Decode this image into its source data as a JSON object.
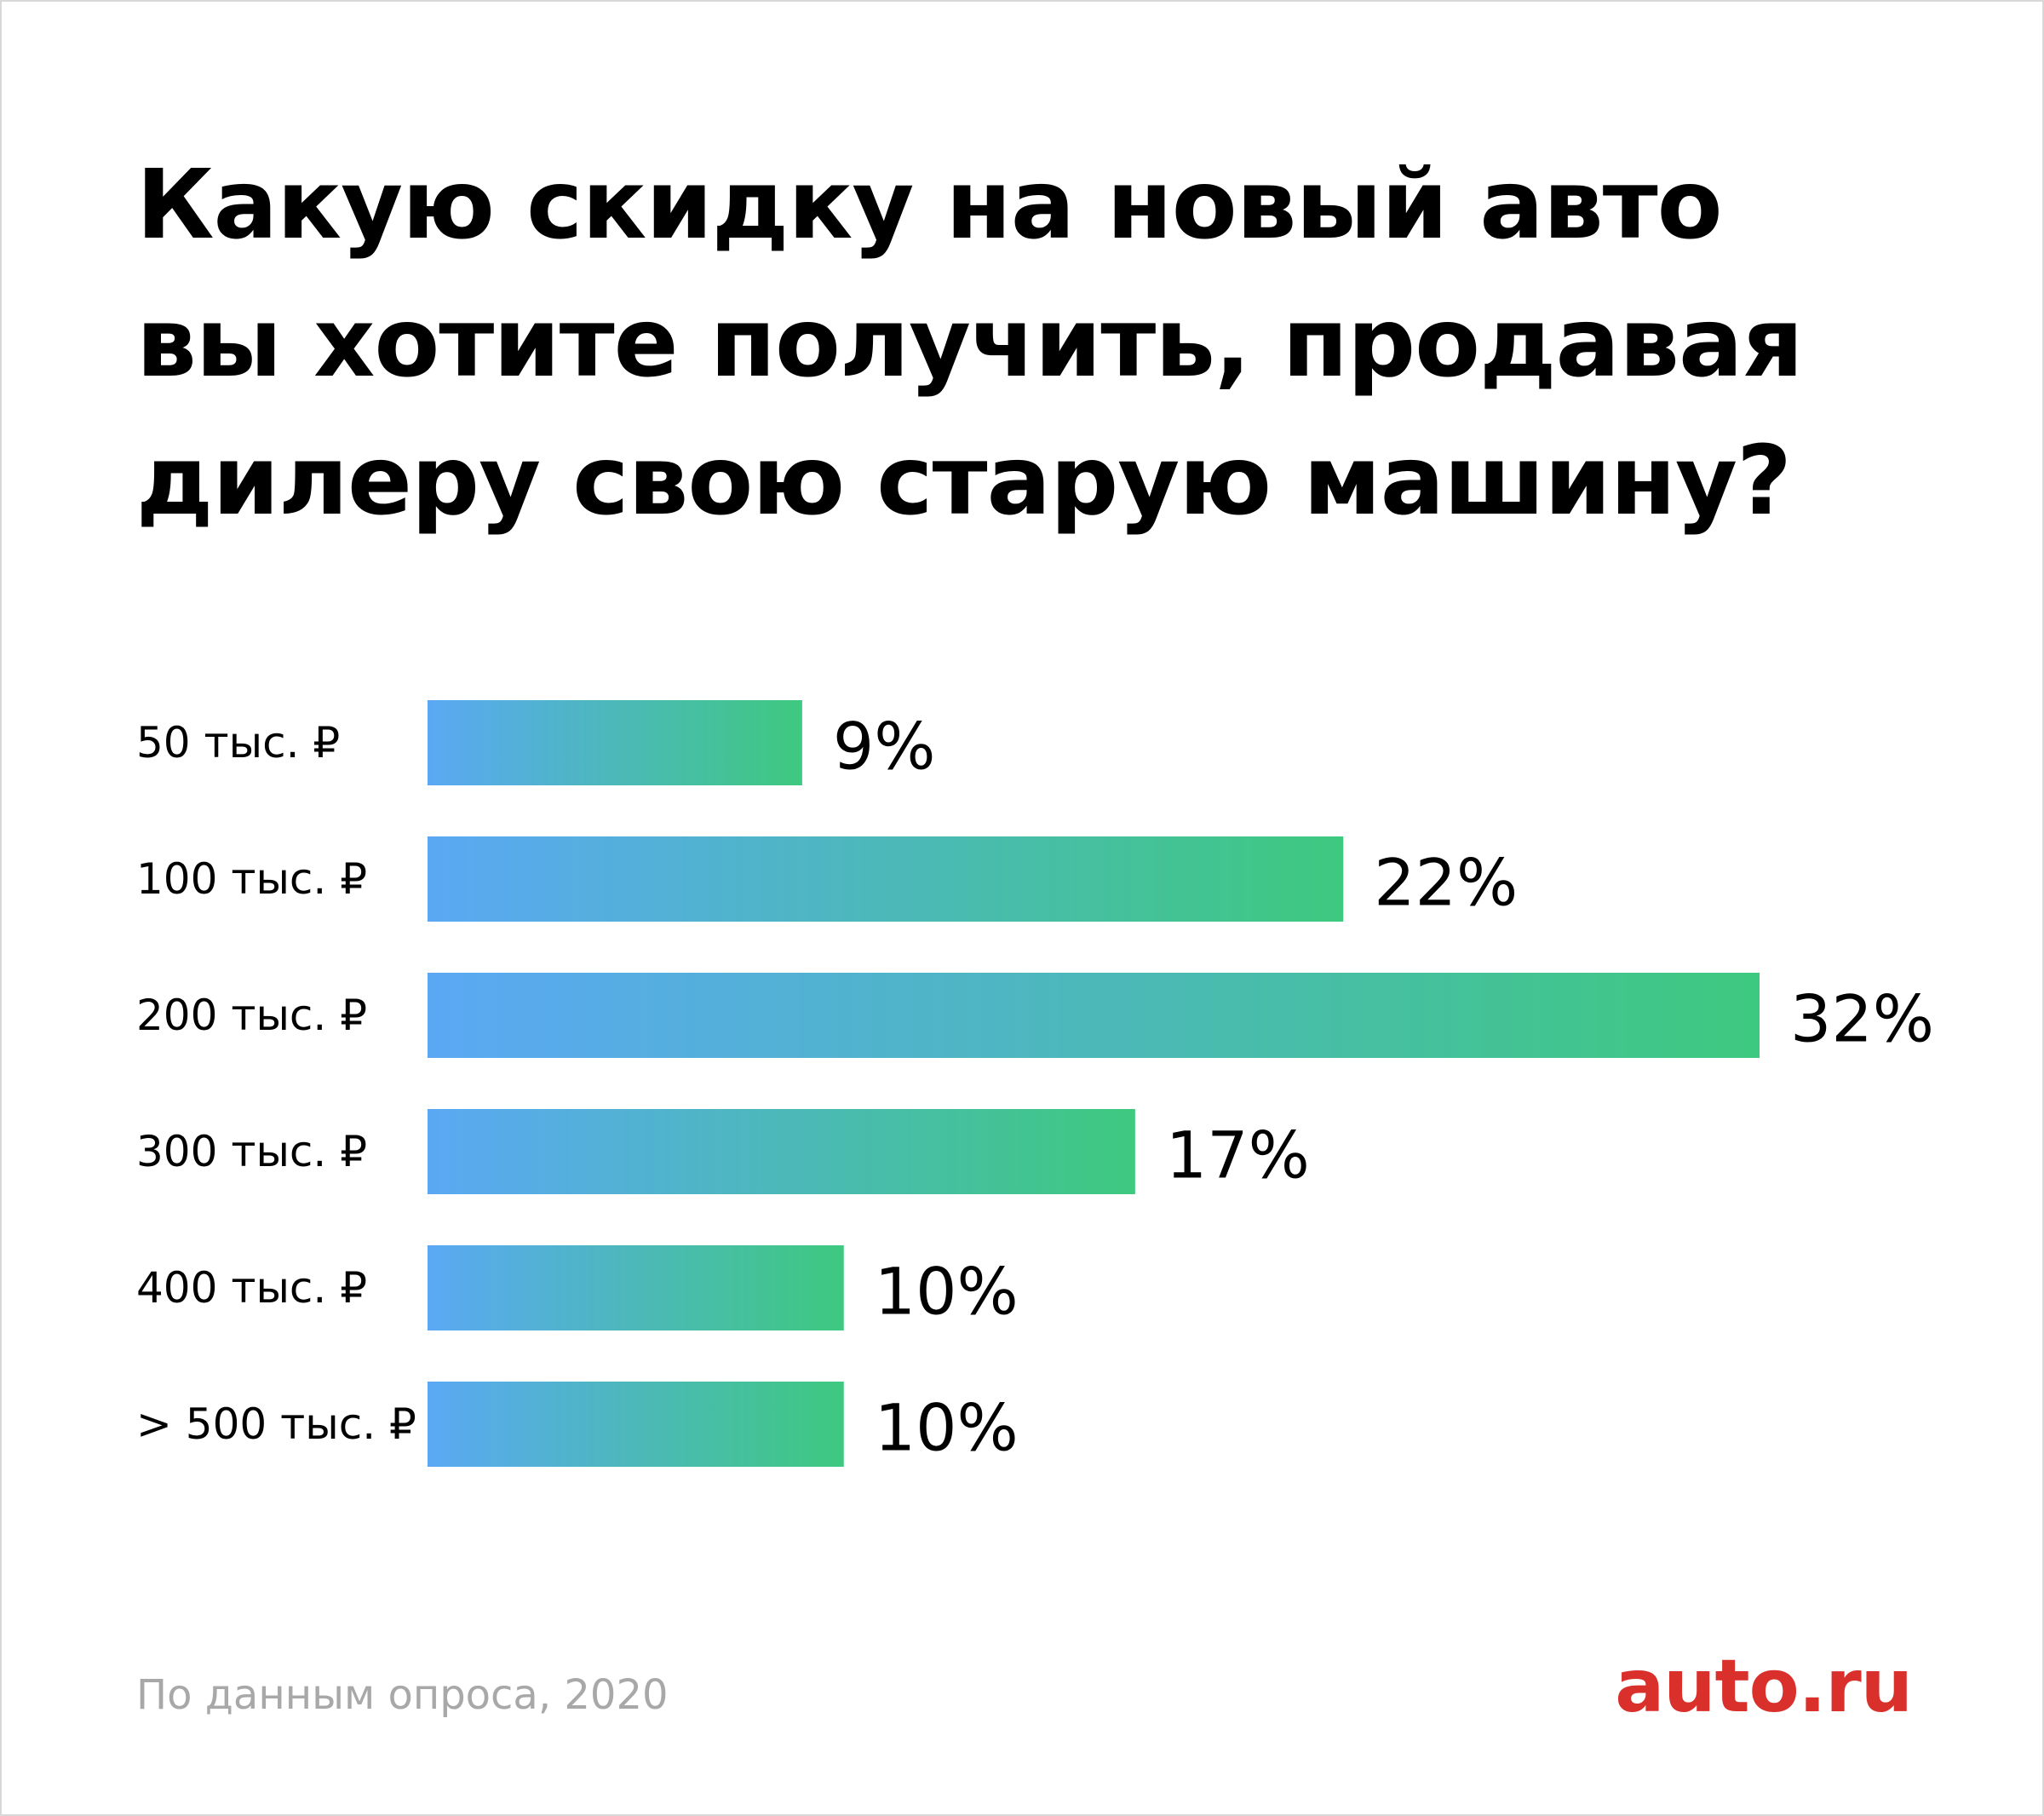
{
  "title_lines": [
    "Какую скидку на новый авто",
    "вы хотите получить, продавая",
    "дилеру свою старую машину?"
  ],
  "source": "По данным опроса, 2020",
  "logo": "auto.ru",
  "colors": {
    "bar_gradient_start": "#5aa8f4",
    "bar_gradient_end": "#3ec97f",
    "logo": "#d9302c",
    "source_text": "#a8a8a8"
  },
  "chart_data": {
    "type": "bar",
    "orientation": "horizontal",
    "title": "Какую скидку на новый авто вы хотите получить, продавая дилеру свою старую машину?",
    "categories": [
      "50 тыс. ₽",
      "100 тыс. ₽",
      "200 тыс. ₽",
      "300 тыс. ₽",
      "400 тыс. ₽",
      "> 500 тыс. ₽"
    ],
    "values": [
      9,
      22,
      32,
      17,
      10,
      10
    ],
    "value_labels": [
      "9%",
      "22%",
      "32%",
      "17%",
      "10%",
      "10%"
    ],
    "unit": "%",
    "xlim": [
      0,
      32
    ],
    "grid": false,
    "legend": false
  }
}
